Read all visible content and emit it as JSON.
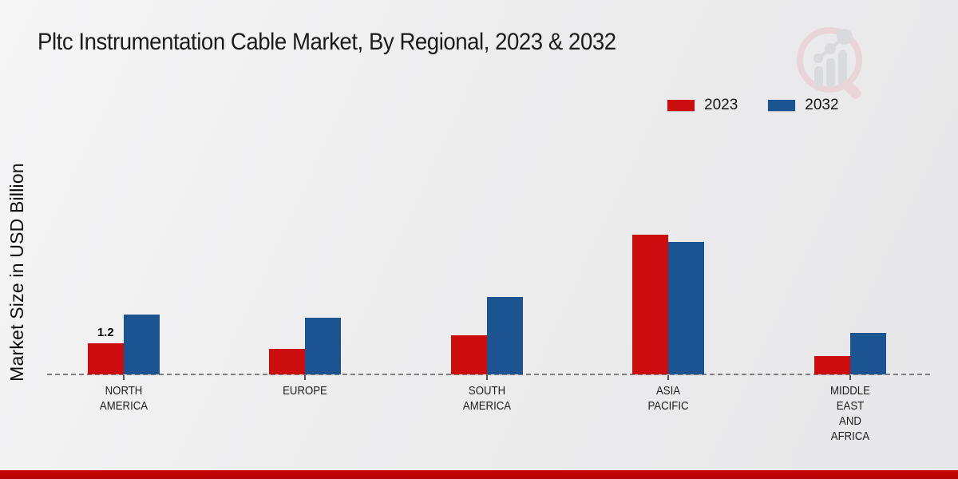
{
  "title": "Pltc Instrumentation Cable Market, By Regional, 2023 & 2032",
  "watermark_icon": "magnifier-bar-chart-logo",
  "legend": {
    "items": [
      {
        "label": "2023",
        "color": "#cc0d0d"
      },
      {
        "label": "2032",
        "color": "#1b5490"
      }
    ]
  },
  "chart_data": {
    "type": "bar",
    "title": "Pltc Instrumentation Cable Market, By Regional, 2023 & 2032",
    "ylabel": "Market Size in USD Billion",
    "xlabel": "",
    "categories": [
      "NORTH\nAMERICA",
      "EUROPE",
      "SOUTH\nAMERICA",
      "ASIA\nPACIFIC",
      "MIDDLE\nEAST\nAND\nAFRICA"
    ],
    "series": [
      {
        "name": "2023",
        "color": "#cc0d0d",
        "values": [
          1.2,
          1.0,
          1.5,
          5.4,
          0.7
        ]
      },
      {
        "name": "2032",
        "color": "#1b5490",
        "values": [
          2.3,
          2.2,
          3.0,
          5.1,
          1.6
        ]
      }
    ],
    "annotations": [
      {
        "series_index": 0,
        "category_index": 0,
        "text": "1.2"
      }
    ],
    "ylim": [
      0,
      6
    ],
    "grid": false,
    "legend_position": "top-right",
    "x_axis_style": "dashed"
  },
  "footer": {
    "accent_color": "#bb0404"
  }
}
